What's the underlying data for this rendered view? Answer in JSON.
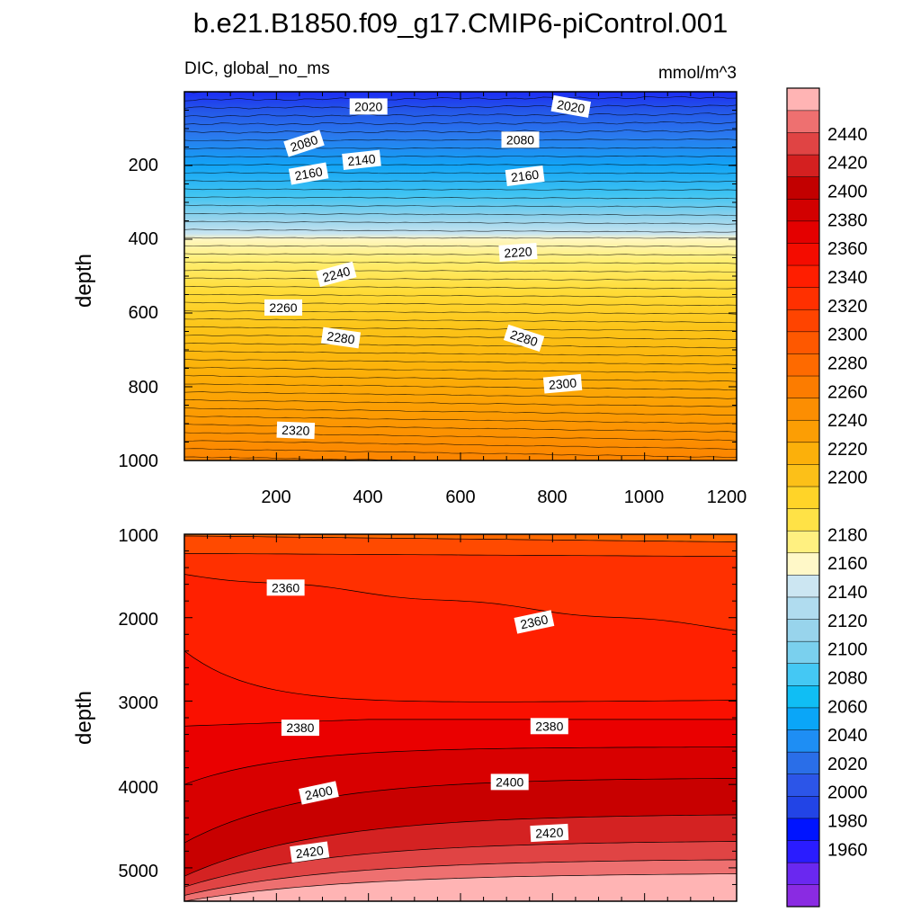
{
  "title": "b.e21.B1850.f09_g17.CMIP6-piControl.001",
  "chart_data": [
    {
      "type": "contour",
      "panel": "upper",
      "subtitle_left": "DIC, global_no_ms",
      "subtitle_right": "mmol/m^3",
      "ylabel": "depth",
      "xlabel": "",
      "xlim": [
        0,
        1200
      ],
      "ylim": [
        0,
        1000
      ],
      "x_ticks": [
        "200",
        "400",
        "600",
        "800",
        "1000",
        "1200"
      ],
      "y_ticks": [
        "200",
        "400",
        "600",
        "800",
        "1000"
      ],
      "contour_labels": [
        {
          "text": "2020",
          "x": 400,
          "y": 40,
          "rot": 0
        },
        {
          "text": "2020",
          "x": 840,
          "y": 40,
          "rot": 10
        },
        {
          "text": "2080",
          "x": 260,
          "y": 140,
          "rot": -18
        },
        {
          "text": "2080",
          "x": 730,
          "y": 130,
          "rot": 0
        },
        {
          "text": "2140",
          "x": 385,
          "y": 185,
          "rot": -6
        },
        {
          "text": "2160",
          "x": 270,
          "y": 222,
          "rot": -10
        },
        {
          "text": "2160",
          "x": 740,
          "y": 228,
          "rot": -7
        },
        {
          "text": "2220",
          "x": 725,
          "y": 435,
          "rot": -4
        },
        {
          "text": "2240",
          "x": 330,
          "y": 495,
          "rot": -15
        },
        {
          "text": "2260",
          "x": 215,
          "y": 585,
          "rot": 0
        },
        {
          "text": "2280",
          "x": 340,
          "y": 667,
          "rot": 8
        },
        {
          "text": "2280",
          "x": 738,
          "y": 668,
          "rot": 18
        },
        {
          "text": "2300",
          "x": 822,
          "y": 792,
          "rot": -5
        },
        {
          "text": "2320",
          "x": 242,
          "y": 918,
          "rot": 2
        }
      ]
    },
    {
      "type": "contour",
      "panel": "lower",
      "ylabel": "depth",
      "xlim": [
        0,
        1200
      ],
      "ylim": [
        1000,
        5400
      ],
      "y_ticks": [
        "1000",
        "2000",
        "3000",
        "4000",
        "5000"
      ],
      "contour_labels": [
        {
          "text": "2360",
          "x": 220,
          "y": 1640,
          "rot": 0
        },
        {
          "text": "2360",
          "x": 760,
          "y": 2050,
          "rot": -12
        },
        {
          "text": "2380",
          "x": 252,
          "y": 3320,
          "rot": 0
        },
        {
          "text": "2380",
          "x": 793,
          "y": 3300,
          "rot": 0
        },
        {
          "text": "2400",
          "x": 292,
          "y": 4100,
          "rot": -12
        },
        {
          "text": "2400",
          "x": 707,
          "y": 3970,
          "rot": 0
        },
        {
          "text": "2420",
          "x": 272,
          "y": 4810,
          "rot": -8
        },
        {
          "text": "2420",
          "x": 793,
          "y": 4580,
          "rot": -3
        }
      ]
    }
  ],
  "colorbar": {
    "levels": [
      "1960",
      "1980",
      "2000",
      "2020",
      "2040",
      "2060",
      "2080",
      "2100",
      "2120",
      "2140",
      "2160",
      "2180",
      "2200",
      "2220",
      "2240",
      "2260",
      "2280",
      "2300",
      "2320",
      "2340",
      "2360",
      "2380",
      "2400",
      "2420",
      "2440"
    ],
    "colors": [
      "#8a2be2",
      "#6a28f0",
      "#2a1cff",
      "#0014ff",
      "#2244e6",
      "#2c55e8",
      "#2a6ee8",
      "#1e8ef4",
      "#0aa6f8",
      "#10bef4",
      "#44c8f4",
      "#7ad0ee",
      "#98d4ec",
      "#b0dcef",
      "#cce6f2",
      "#fff8c8",
      "#fff080",
      "#ffe246",
      "#ffd428",
      "#fcc018",
      "#fcb00a",
      "#fc9e04",
      "#fc8e02",
      "#fc7c00",
      "#fe6a00",
      "#fe5800",
      "#ff4400",
      "#ff3000",
      "#ff1e00",
      "#f40c00",
      "#e40000",
      "#d20000",
      "#c20000",
      "#d42020",
      "#e04444",
      "#ee7070",
      "#ffb4b4"
    ]
  }
}
